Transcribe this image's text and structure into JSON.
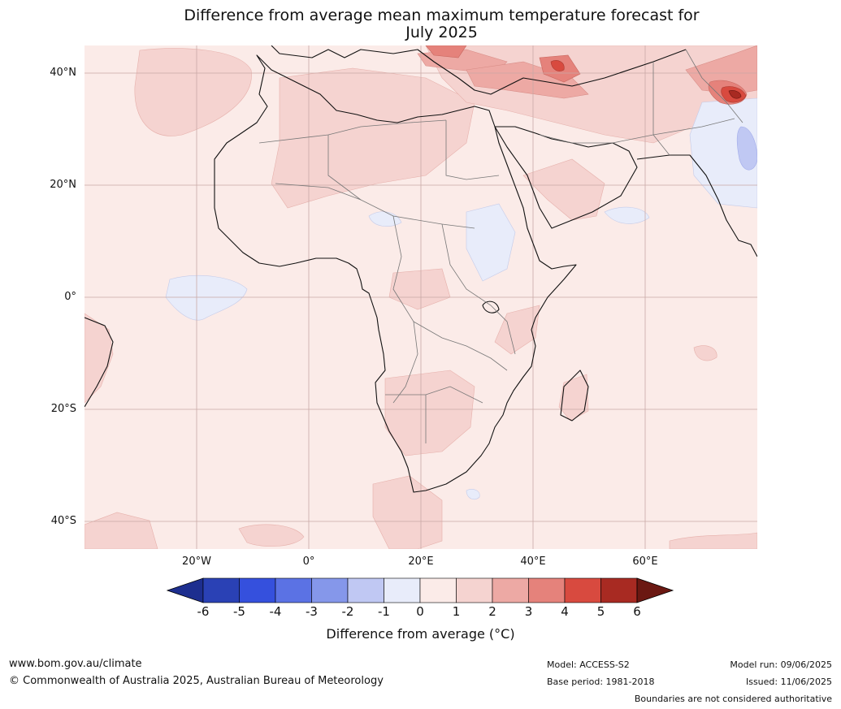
{
  "title_line1": "Difference from average mean maximum temperature forecast for",
  "title_line2": "July 2025",
  "map": {
    "background_color": "#fbebe8",
    "lat_labels": [
      "40°N",
      "20°N",
      "0°",
      "20°S",
      "40°S"
    ],
    "lon_labels": [
      "20°W",
      "0°",
      "20°E",
      "40°E",
      "60°E"
    ]
  },
  "colorbar": {
    "ticks": [
      "-6",
      "-5",
      "-4",
      "-3",
      "-2",
      "-1",
      "0",
      "1",
      "2",
      "3",
      "4",
      "5",
      "6"
    ],
    "colors": [
      "#1d2e8f",
      "#2a41b5",
      "#3550dd",
      "#5b72e4",
      "#8597ea",
      "#c0c8f3",
      "#e8ecfa",
      "#fbebe8",
      "#f5d3d0",
      "#eda9a4",
      "#e5827b",
      "#d84a3f",
      "#a82a22",
      "#6b1812"
    ],
    "label": "Difference from average (°C)"
  },
  "footer": {
    "website": "www.bom.gov.au/climate",
    "copyright": "© Commonwealth of Australia 2025, Australian Bureau of Meteorology",
    "model": "Model: ACCESS-S2",
    "base_period": "Base period: 1981-2018",
    "model_run": "Model run: 09/06/2025",
    "issued": "Issued: 11/06/2025",
    "disclaimer": "Boundaries are not considered authoritative"
  }
}
